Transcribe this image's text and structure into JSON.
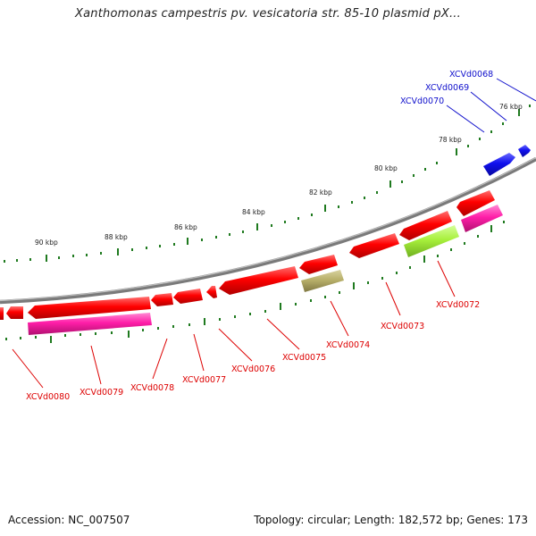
{
  "title": "Xanthomonas campestris pv. vesicatoria str. 85-10 plasmid pX...",
  "footer": {
    "accession": "Accession: NC_007507",
    "topology": "Topology: circular; Length: 182,572 bp; Genes: 173"
  },
  "colors": {
    "red_gene": "#ff0000",
    "pink_gene": "#ff1ea8",
    "blue_gene": "#1010ee",
    "olive_gene": "#b8b06a",
    "lime_gene": "#a8f03c",
    "backbone": "#8a8a8a",
    "tick": "#1f7a1f",
    "red_label": "#dd0000",
    "blue_label": "#1010cc"
  },
  "scale_labels": [
    "76 kbp",
    "78 kbp",
    "80 kbp",
    "82 kbp",
    "84 kbp",
    "86 kbp",
    "88 kbp",
    "90 kbp"
  ],
  "gene_labels_blue": [
    "XCVd0068",
    "XCVd0069",
    "XCVd0070"
  ],
  "gene_labels_red": [
    "XCVd0072",
    "XCVd0073",
    "XCVd0074",
    "XCVd0075",
    "XCVd0076",
    "XCVd0077",
    "XCVd0078",
    "XCVd0079",
    "XCVd0080"
  ]
}
